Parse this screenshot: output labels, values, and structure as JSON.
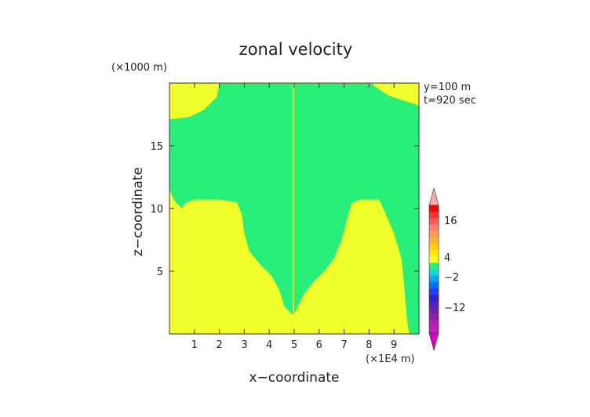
{
  "chart_data": {
    "type": "heatmap",
    "title": "zonal velocity",
    "xlabel": "x−coordinate",
    "ylabel": "z−coordinate",
    "x_unit": "(×1E4 m)",
    "y_unit": "(×1000 m)",
    "annotations": [
      "y=100 m",
      "t=920 sec"
    ],
    "xlim": [
      0,
      10
    ],
    "ylim": [
      0,
      20
    ],
    "x_ticks": [
      1,
      2,
      3,
      4,
      5,
      6,
      7,
      8,
      9
    ],
    "y_ticks": [
      5,
      10,
      15
    ],
    "colorbar_ticks": [
      "16",
      "4",
      "−2",
      "−12"
    ],
    "colors": {
      "positive_fill": "#f0ff2a",
      "negative_fill": "#28ee7a"
    },
    "regions": [
      {
        "name": "negative",
        "color": "#28ee7a",
        "polygons": [
          [
            [
              0,
              18.9
            ],
            [
              1.9,
              18.9
            ],
            [
              2.0,
              19.95
            ],
            [
              5.0,
              19.95
            ],
            [
              5.0,
              1.5
            ],
            [
              4.9,
              1.6
            ],
            [
              4.6,
              2.2
            ],
            [
              4.4,
              3.5
            ],
            [
              4.1,
              4.6
            ],
            [
              3.6,
              5.6
            ],
            [
              3.2,
              6.6
            ],
            [
              3.0,
              8.0
            ],
            [
              2.9,
              9.5
            ],
            [
              2.7,
              10.5
            ],
            [
              2.0,
              10.7
            ],
            [
              1.0,
              10.7
            ],
            [
              0.6,
              10.4
            ],
            [
              0.5,
              10.0
            ],
            [
              0.2,
              10.6
            ],
            [
              0.1,
              11.0
            ],
            [
              0.0,
              11.6
            ]
          ],
          [
            [
              5.0,
              1.5
            ],
            [
              5.05,
              1.8
            ],
            [
              5.4,
              3.2
            ],
            [
              5.8,
              4.2
            ],
            [
              6.2,
              5.0
            ],
            [
              6.6,
              6.0
            ],
            [
              6.9,
              7.5
            ],
            [
              7.1,
              9.0
            ],
            [
              7.3,
              10.4
            ],
            [
              7.6,
              10.7
            ],
            [
              8.4,
              10.7
            ],
            [
              8.7,
              9.4
            ],
            [
              9.0,
              8.0
            ],
            [
              9.3,
              6.0
            ],
            [
              9.4,
              4.0
            ],
            [
              9.5,
              1.5
            ],
            [
              9.6,
              0.05
            ],
            [
              10.0,
              0.05
            ],
            [
              10.0,
              5.0
            ],
            [
              10.0,
              10.0
            ],
            [
              10.0,
              15.0
            ],
            [
              10.0,
              18.2
            ],
            [
              9.4,
              18.6
            ],
            [
              8.8,
              19.0
            ],
            [
              8.4,
              19.5
            ],
            [
              8.1,
              19.95
            ],
            [
              5.0,
              19.95
            ]
          ],
          [
            [
              0,
              18.9
            ],
            [
              0,
              11.6
            ],
            [
              0.0,
              11.6
            ]
          ]
        ]
      },
      {
        "name": "positive",
        "color": "#f0ff2a",
        "polygons": [
          [
            [
              0,
              20
            ],
            [
              1.9,
              20
            ],
            [
              1.9,
              18.9
            ],
            [
              1.4,
              17.9
            ],
            [
              0.8,
              17.3
            ],
            [
              0,
              17.1
            ]
          ],
          [
            [
              0,
              0
            ],
            [
              0,
              11.6
            ],
            [
              0.1,
              11.0
            ],
            [
              0.2,
              10.6
            ],
            [
              0.5,
              10.0
            ],
            [
              0.6,
              10.4
            ],
            [
              1.0,
              10.7
            ],
            [
              2.0,
              10.7
            ],
            [
              2.7,
              10.5
            ],
            [
              2.9,
              9.5
            ],
            [
              3.0,
              8.0
            ],
            [
              3.2,
              6.6
            ],
            [
              3.6,
              5.6
            ],
            [
              4.1,
              4.6
            ],
            [
              4.4,
              3.5
            ],
            [
              4.6,
              2.2
            ],
            [
              4.9,
              1.6
            ],
            [
              5.0,
              1.5
            ],
            [
              5.05,
              1.8
            ],
            [
              5.4,
              3.2
            ],
            [
              5.8,
              4.2
            ],
            [
              6.2,
              5.0
            ],
            [
              6.6,
              6.0
            ],
            [
              6.9,
              7.5
            ],
            [
              7.1,
              9.0
            ],
            [
              7.3,
              10.4
            ],
            [
              7.6,
              10.7
            ],
            [
              8.4,
              10.7
            ],
            [
              8.7,
              9.4
            ],
            [
              9.0,
              8.0
            ],
            [
              9.3,
              6.0
            ],
            [
              9.4,
              4.0
            ],
            [
              9.5,
              1.5
            ],
            [
              9.6,
              0
            ]
          ],
          [
            [
              5.0,
              20
            ],
            [
              8.1,
              20
            ],
            [
              8.4,
              19.5
            ],
            [
              8.8,
              19.0
            ],
            [
              9.4,
              18.6
            ],
            [
              10.0,
              18.2
            ],
            [
              10.0,
              20
            ]
          ],
          [
            [
              5.0,
              20
            ],
            [
              5.0,
              1.5
            ],
            [
              4.95,
              1.55
            ],
            [
              4.95,
              20
            ]
          ]
        ]
      }
    ],
    "colorbar": [
      "#ff0000",
      "#ff3232",
      "#ff5a5a",
      "#ff7e6e",
      "#ff9a50",
      "#ffb430",
      "#ffd000",
      "#ffec00",
      "#f0ff2a",
      "#28ee7a",
      "#10d8d8",
      "#00a8ff",
      "#0070ff",
      "#2040ff",
      "#3020d0",
      "#5020c0",
      "#7020b0",
      "#9020b0",
      "#b020b0",
      "#c020b8"
    ]
  }
}
